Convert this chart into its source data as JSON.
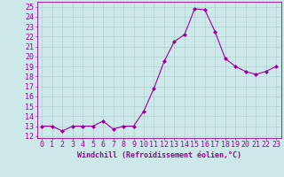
{
  "x": [
    0,
    1,
    2,
    3,
    4,
    5,
    6,
    7,
    8,
    9,
    10,
    11,
    12,
    13,
    14,
    15,
    16,
    17,
    18,
    19,
    20,
    21,
    22,
    23
  ],
  "y": [
    13.0,
    13.0,
    12.5,
    13.0,
    13.0,
    13.0,
    13.5,
    12.7,
    13.0,
    13.0,
    14.5,
    16.8,
    19.5,
    21.5,
    22.2,
    24.8,
    24.7,
    22.5,
    19.8,
    19.0,
    18.5,
    18.2,
    18.5,
    19.0
  ],
  "line_color": "#990099",
  "marker": "D",
  "marker_size": 2,
  "bg_color": "#cde8e8",
  "grid_color": "#b0d0d0",
  "axis_color": "#990099",
  "xlabel": "Windchill (Refroidissement éolien,°C)",
  "xlabel_fontsize": 6.0,
  "ylabel_ticks": [
    12,
    13,
    14,
    15,
    16,
    17,
    18,
    19,
    20,
    21,
    22,
    23,
    24,
    25
  ],
  "xlim": [
    -0.5,
    23.5
  ],
  "ylim": [
    11.8,
    25.5
  ],
  "tick_fontsize": 6.0,
  "linewidth": 0.8
}
